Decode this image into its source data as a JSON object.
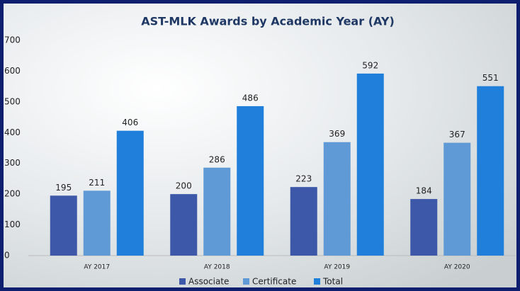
{
  "chart_data": {
    "type": "bar",
    "title": "AST-MLK Awards by Academic Year (AY)",
    "categories": [
      "AY 2017",
      "AY 2018",
      "AY 2019",
      "AY 2020"
    ],
    "series": [
      {
        "name": "Associate",
        "color": "#3d58a8",
        "values": [
          195,
          200,
          223,
          184
        ]
      },
      {
        "name": "Certificate",
        "color": "#5f9ad6",
        "values": [
          211,
          286,
          369,
          367
        ]
      },
      {
        "name": "Total",
        "color": "#1f7fdb",
        "values": [
          406,
          486,
          592,
          551
        ]
      }
    ],
    "ylim": [
      0,
      700
    ],
    "yticks": [
      0,
      100,
      200,
      300,
      400,
      500,
      600,
      700
    ],
    "legend": "bottom",
    "grid": false
  }
}
